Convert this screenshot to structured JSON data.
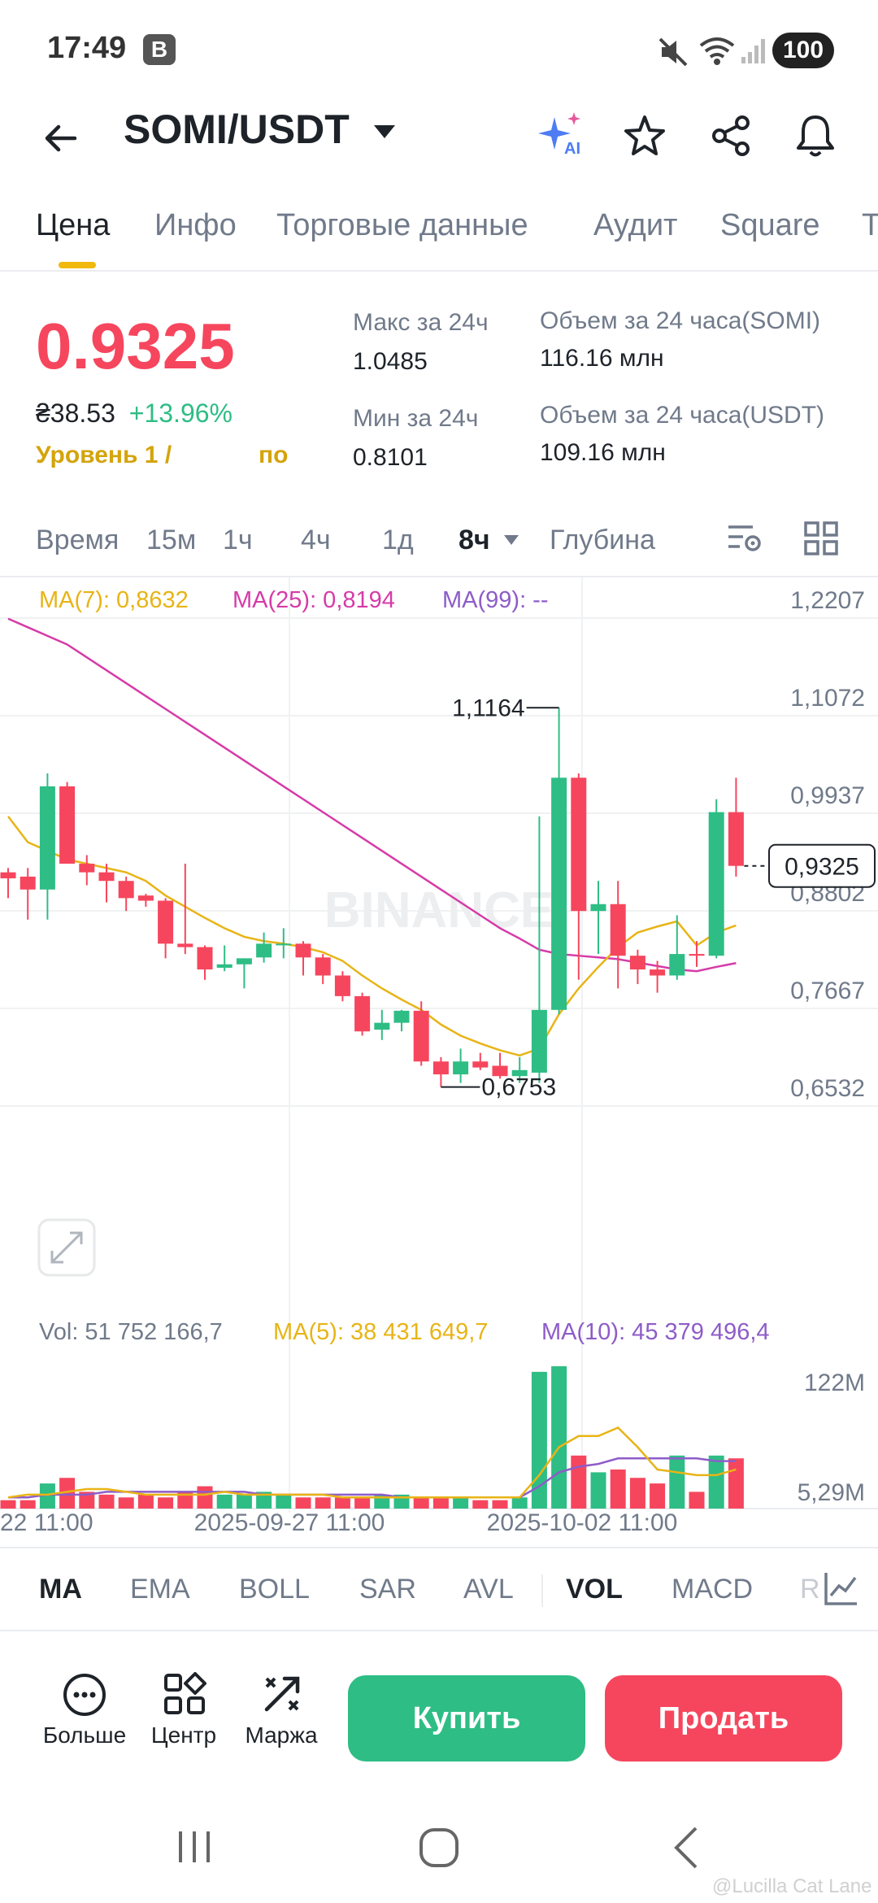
{
  "status": {
    "time": "17:49",
    "badge": "B",
    "battery": "100"
  },
  "header": {
    "pair": "SOMI/USDT",
    "ai_badge": "AI"
  },
  "tabs": [
    {
      "label": "Цена"
    },
    {
      "label": "Инфо"
    },
    {
      "label": "Торговые данные"
    },
    {
      "label": "Аудит"
    },
    {
      "label": "Square"
    },
    {
      "label": "T"
    }
  ],
  "ticker": {
    "price": "0.9325",
    "price_uah": "₴38.53",
    "change": "+13.96%",
    "level": "Уровень 1 /",
    "level_tail": "по",
    "high_label": "Макс за 24ч",
    "high": "1.0485",
    "low_label": "Мин за 24ч",
    "low": "0.8101",
    "vol_somi_label": "Объем за 24 часа(SOMI)",
    "vol_somi": "116.16 млн",
    "vol_usdt_label": "Объем за 24 часа(USDT)",
    "vol_usdt": "109.16 млн"
  },
  "timeframes": [
    {
      "label": "Время"
    },
    {
      "label": "15м"
    },
    {
      "label": "1ч"
    },
    {
      "label": "4ч"
    },
    {
      "label": "1д"
    },
    {
      "label": "8ч"
    },
    {
      "label": "Глубина"
    }
  ],
  "ma_legend": {
    "ma7": "MA(7): 0,8632",
    "ma25": "MA(25): 0,8194",
    "ma99": "MA(99): --"
  },
  "vol_legend": {
    "vol": "Vol: 51 752 166,7",
    "ma5": "MA(5): 38 431 649,7",
    "ma10": "MA(10): 45 379 496,4"
  },
  "colors": {
    "up": "#2ebd85",
    "down": "#f6465d",
    "ma7": "#e8b416",
    "ma25": "#d63ba8",
    "ma10": "#8e5cc8",
    "accent": "#f0b90b"
  },
  "chart_data": {
    "type": "candlestick",
    "interval": "8ч",
    "y_ticks": [
      "1,2207",
      "1,1072",
      "0,9937",
      "0,8802",
      "0,7667",
      "0,6532"
    ],
    "ylim": [
      0.6532,
      1.2207
    ],
    "x_ticks": [
      "-22 11:00",
      "2025-09-27 11:00",
      "2025-10-02 11:00"
    ],
    "current_price": "0,9325",
    "high_marker": "1,1164",
    "low_marker": "0,6753",
    "watermark": "BINANCE",
    "candles": [
      {
        "o": 0.925,
        "h": 0.93,
        "l": 0.895,
        "c": 0.918
      },
      {
        "o": 0.92,
        "h": 0.93,
        "l": 0.87,
        "c": 0.905
      },
      {
        "o": 0.905,
        "h": 1.04,
        "l": 0.87,
        "c": 1.025
      },
      {
        "o": 1.025,
        "h": 1.03,
        "l": 0.94,
        "c": 0.935
      },
      {
        "o": 0.935,
        "h": 0.945,
        "l": 0.91,
        "c": 0.925
      },
      {
        "o": 0.925,
        "h": 0.935,
        "l": 0.89,
        "c": 0.915
      },
      {
        "o": 0.915,
        "h": 0.92,
        "l": 0.88,
        "c": 0.895
      },
      {
        "o": 0.898,
        "h": 0.9,
        "l": 0.885,
        "c": 0.892
      },
      {
        "o": 0.892,
        "h": 0.895,
        "l": 0.825,
        "c": 0.842
      },
      {
        "o": 0.842,
        "h": 0.935,
        "l": 0.83,
        "c": 0.838
      },
      {
        "o": 0.838,
        "h": 0.84,
        "l": 0.8,
        "c": 0.812
      },
      {
        "o": 0.814,
        "h": 0.84,
        "l": 0.81,
        "c": 0.818
      },
      {
        "o": 0.818,
        "h": 0.825,
        "l": 0.79,
        "c": 0.825
      },
      {
        "o": 0.826,
        "h": 0.855,
        "l": 0.82,
        "c": 0.842
      },
      {
        "o": 0.842,
        "h": 0.86,
        "l": 0.825,
        "c": 0.842
      },
      {
        "o": 0.842,
        "h": 0.845,
        "l": 0.805,
        "c": 0.826
      },
      {
        "o": 0.826,
        "h": 0.83,
        "l": 0.795,
        "c": 0.805
      },
      {
        "o": 0.805,
        "h": 0.81,
        "l": 0.775,
        "c": 0.781
      },
      {
        "o": 0.781,
        "h": 0.785,
        "l": 0.735,
        "c": 0.74
      },
      {
        "o": 0.742,
        "h": 0.765,
        "l": 0.73,
        "c": 0.75
      },
      {
        "o": 0.75,
        "h": 0.765,
        "l": 0.74,
        "c": 0.764
      },
      {
        "o": 0.764,
        "h": 0.775,
        "l": 0.7,
        "c": 0.705
      },
      {
        "o": 0.705,
        "h": 0.71,
        "l": 0.6753,
        "c": 0.69
      },
      {
        "o": 0.69,
        "h": 0.72,
        "l": 0.68,
        "c": 0.705
      },
      {
        "o": 0.705,
        "h": 0.715,
        "l": 0.695,
        "c": 0.698
      },
      {
        "o": 0.7,
        "h": 0.715,
        "l": 0.685,
        "c": 0.688
      },
      {
        "o": 0.688,
        "h": 0.71,
        "l": 0.68,
        "c": 0.695
      },
      {
        "o": 0.692,
        "h": 0.99,
        "l": 0.68,
        "c": 0.765
      },
      {
        "o": 0.765,
        "h": 1.1164,
        "l": 0.76,
        "c": 1.035
      },
      {
        "o": 1.035,
        "h": 1.04,
        "l": 0.8,
        "c": 0.88
      },
      {
        "o": 0.88,
        "h": 0.915,
        "l": 0.83,
        "c": 0.888
      },
      {
        "o": 0.888,
        "h": 0.915,
        "l": 0.79,
        "c": 0.828
      },
      {
        "o": 0.828,
        "h": 0.835,
        "l": 0.795,
        "c": 0.812
      },
      {
        "o": 0.812,
        "h": 0.822,
        "l": 0.785,
        "c": 0.805
      },
      {
        "o": 0.805,
        "h": 0.875,
        "l": 0.8,
        "c": 0.83
      },
      {
        "o": 0.83,
        "h": 0.845,
        "l": 0.815,
        "c": 0.828
      },
      {
        "o": 0.828,
        "h": 1.01,
        "l": 0.825,
        "c": 0.995
      },
      {
        "o": 0.995,
        "h": 1.035,
        "l": 0.92,
        "c": 0.9325
      }
    ],
    "ma7": [
      0.99,
      0.96,
      0.95,
      0.94,
      0.935,
      0.93,
      0.925,
      0.915,
      0.898,
      0.885,
      0.872,
      0.86,
      0.85,
      0.845,
      0.842,
      0.838,
      0.832,
      0.822,
      0.805,
      0.79,
      0.777,
      0.765,
      0.748,
      0.735,
      0.726,
      0.718,
      0.712,
      0.72,
      0.76,
      0.79,
      0.815,
      0.838,
      0.855,
      0.862,
      0.868,
      0.84,
      0.855,
      0.8632
    ],
    "ma25": [
      1.22,
      1.21,
      1.2,
      1.19,
      1.175,
      1.16,
      1.145,
      1.13,
      1.115,
      1.1,
      1.085,
      1.07,
      1.055,
      1.04,
      1.025,
      1.01,
      0.995,
      0.98,
      0.965,
      0.95,
      0.935,
      0.92,
      0.905,
      0.89,
      0.875,
      0.86,
      0.848,
      0.835,
      0.83,
      0.828,
      0.826,
      0.824,
      0.82,
      0.816,
      0.812,
      0.81,
      0.815,
      0.8194
    ],
    "volumes": [
      3,
      3,
      9,
      11,
      6,
      5,
      4,
      5,
      4,
      6,
      8,
      5,
      5,
      6,
      5,
      4,
      4,
      4,
      4,
      5,
      5,
      4,
      4,
      4,
      3,
      3,
      4,
      49,
      51,
      19,
      13,
      14,
      11,
      9,
      19,
      6,
      19,
      18
    ],
    "vol_ma5": [
      4,
      5,
      5,
      6,
      7,
      7,
      6,
      5,
      5,
      5,
      5,
      6,
      5,
      5,
      5,
      5,
      5,
      4,
      4,
      4,
      4,
      4,
      4,
      4,
      4,
      4,
      4,
      12,
      22,
      26,
      26,
      29,
      22,
      14,
      13,
      12,
      12,
      14
    ],
    "vol_ma10": [
      4,
      4,
      5,
      5,
      5,
      6,
      6,
      6,
      6,
      6,
      6,
      6,
      6,
      5,
      5,
      5,
      5,
      5,
      5,
      5,
      4,
      4,
      4,
      4,
      4,
      4,
      4,
      8,
      13,
      15,
      16,
      18,
      18,
      18,
      18,
      18,
      17,
      17
    ],
    "vol_ticks": [
      "122M",
      "5,29M"
    ]
  },
  "indicators": [
    {
      "label": "MA"
    },
    {
      "label": "EMA"
    },
    {
      "label": "BOLL"
    },
    {
      "label": "SAR"
    },
    {
      "label": "AVL"
    },
    {
      "label": "VOL"
    },
    {
      "label": "MACD"
    },
    {
      "label": "R"
    }
  ],
  "bottom": {
    "more": "Больше",
    "center": "Центр",
    "margin": "Маржа",
    "buy": "Купить",
    "sell": "Продать"
  },
  "watermark_text": "@Lucilla Cat Lane"
}
